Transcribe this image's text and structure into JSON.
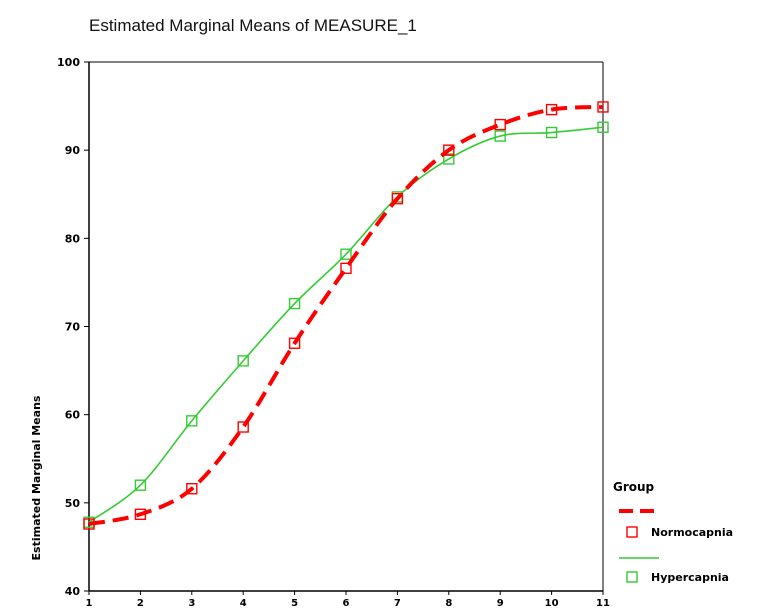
{
  "chart_data": {
    "type": "line",
    "title": "Estimated Marginal Means of MEASURE_1",
    "xlabel": "",
    "ylabel": "Estimated Marginal Means",
    "x": [
      1,
      2,
      3,
      4,
      5,
      6,
      7,
      8,
      9,
      10,
      11
    ],
    "x_tick_labels": [
      "1",
      "2",
      "3",
      "4",
      "5",
      "6",
      "7",
      "8",
      "9",
      "10",
      "11"
    ],
    "ylim": [
      40,
      100
    ],
    "y_ticks": [
      40,
      50,
      60,
      70,
      80,
      90,
      100
    ],
    "y_tick_labels": [
      "40",
      "50",
      "60",
      "70",
      "80",
      "90",
      "100"
    ],
    "grid": false,
    "legend": {
      "title": "Group",
      "position": "right"
    },
    "series": [
      {
        "name": "Normocapnia",
        "color": "#ff0000",
        "line_style": "dashed",
        "marker": "open-square",
        "values": [
          47.6,
          48.7,
          51.6,
          58.6,
          68.1,
          76.6,
          84.5,
          90.0,
          92.9,
          94.6,
          94.9
        ]
      },
      {
        "name": "Hypercapnia",
        "color": "#33cc33",
        "line_style": "solid",
        "marker": "open-square",
        "values": [
          47.8,
          52.0,
          59.3,
          66.1,
          72.6,
          78.2,
          84.7,
          89.0,
          91.6,
          92.0,
          92.6
        ]
      }
    ]
  }
}
